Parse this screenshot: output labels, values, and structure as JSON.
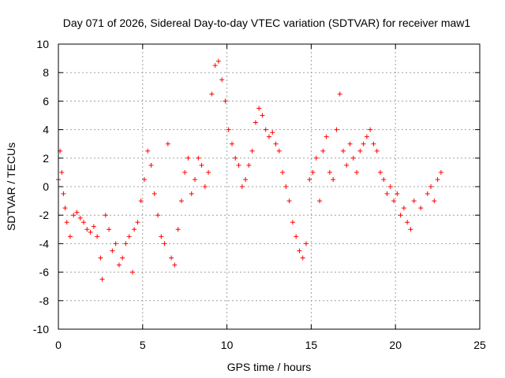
{
  "chart_data": {
    "type": "scatter",
    "title": "Day 071 of 2026, Sidereal Day-to-day VTEC variation (SDTVAR) for receiver maw1",
    "xlabel": "GPS time / hours",
    "ylabel": "SDTVAR / TECUs",
    "xlim": [
      0,
      25
    ],
    "ylim": [
      -10,
      10
    ],
    "xticks": [
      0,
      5,
      10,
      15,
      20,
      25
    ],
    "yticks": [
      -10,
      -8,
      -6,
      -4,
      -2,
      0,
      2,
      4,
      6,
      8,
      10
    ],
    "xtick_labels": [
      "0",
      "5",
      "10",
      "15",
      "20",
      "25"
    ],
    "ytick_labels": [
      "-10",
      "-8",
      "-6",
      "-4",
      "-2",
      "0",
      "2",
      "4",
      "6",
      "8",
      "10"
    ],
    "grid": true,
    "marker": "+",
    "series": [
      {
        "name": "maw1 SDTVAR",
        "color": "#ff0000",
        "x": [
          0.0,
          0.1,
          0.2,
          0.3,
          0.4,
          0.5,
          0.7,
          0.9,
          1.1,
          1.3,
          1.5,
          1.7,
          1.9,
          2.1,
          2.3,
          2.5,
          2.6,
          2.8,
          3.0,
          3.2,
          3.4,
          3.6,
          3.8,
          4.0,
          4.2,
          4.4,
          4.5,
          4.7,
          4.9,
          5.1,
          5.3,
          5.5,
          5.7,
          5.9,
          6.1,
          6.3,
          6.5,
          6.7,
          6.9,
          7.1,
          7.3,
          7.5,
          7.7,
          7.9,
          8.1,
          8.3,
          8.5,
          8.7,
          8.9,
          9.1,
          9.3,
          9.5,
          9.7,
          9.9,
          10.1,
          10.3,
          10.5,
          10.7,
          10.9,
          11.1,
          11.3,
          11.5,
          11.7,
          11.9,
          12.1,
          12.3,
          12.5,
          12.7,
          12.9,
          13.1,
          13.3,
          13.5,
          13.7,
          13.9,
          14.1,
          14.3,
          14.5,
          14.7,
          14.9,
          15.1,
          15.3,
          15.5,
          15.7,
          15.9,
          16.1,
          16.3,
          16.5,
          16.7,
          16.9,
          17.1,
          17.3,
          17.5,
          17.7,
          17.9,
          18.1,
          18.3,
          18.5,
          18.7,
          18.9,
          19.1,
          19.3,
          19.5,
          19.7,
          19.9,
          20.1,
          20.3,
          20.5,
          20.7,
          20.9,
          21.1,
          21.5,
          21.9,
          22.1,
          22.3,
          22.5,
          22.7
        ],
        "y": [
          0.5,
          2.5,
          1.0,
          -0.5,
          -1.5,
          -2.5,
          -3.5,
          -2.0,
          -1.8,
          -2.2,
          -2.5,
          -3.0,
          -3.2,
          -2.8,
          -3.5,
          -5.0,
          -6.5,
          -2.0,
          -3.0,
          -4.5,
          -4.0,
          -5.5,
          -5.0,
          -4.0,
          -3.5,
          -6.0,
          -3.0,
          -2.5,
          -1.0,
          0.5,
          2.5,
          1.5,
          -0.5,
          -2.0,
          -3.5,
          -4.0,
          3.0,
          -5.0,
          -5.5,
          -3.0,
          -1.0,
          1.0,
          2.0,
          -0.5,
          0.5,
          2.0,
          1.5,
          0.0,
          1.0,
          6.5,
          8.5,
          8.8,
          7.5,
          6.0,
          4.0,
          3.0,
          2.0,
          1.5,
          0.0,
          0.5,
          1.5,
          2.5,
          4.5,
          5.5,
          5.0,
          4.0,
          3.5,
          3.8,
          3.0,
          2.5,
          1.0,
          0.0,
          -1.0,
          -2.5,
          -3.5,
          -4.5,
          -5.0,
          -4.0,
          0.5,
          1.0,
          2.0,
          -1.0,
          2.5,
          3.5,
          1.0,
          0.5,
          4.0,
          6.5,
          2.5,
          1.5,
          3.0,
          2.0,
          1.0,
          2.5,
          3.0,
          3.5,
          4.0,
          3.0,
          2.5,
          1.0,
          0.5,
          -0.5,
          0.0,
          -1.0,
          -0.5,
          -2.0,
          -1.5,
          -2.5,
          -3.0,
          -1.0,
          -1.5,
          -0.5,
          0.0,
          -1.0,
          0.5,
          1.0
        ]
      }
    ]
  }
}
